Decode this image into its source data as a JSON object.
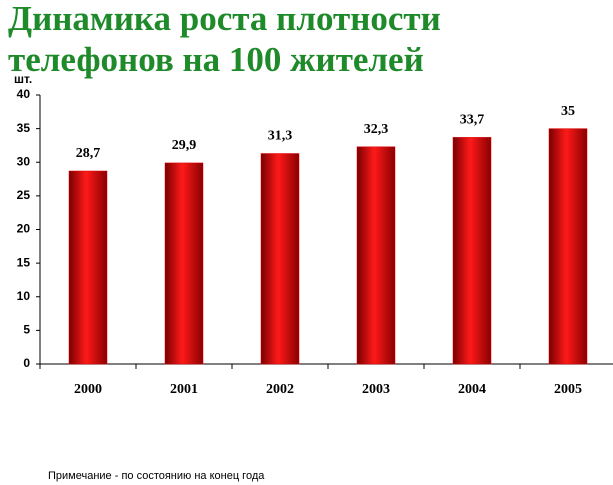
{
  "chart_data": {
    "type": "bar",
    "title": [
      "Динамика роста плотности",
      "телефонов на 100 жителей"
    ],
    "y_label": "шт.",
    "categories": [
      "2000",
      "2001",
      "2002",
      "2003",
      "2004",
      "2005"
    ],
    "values": [
      28.7,
      29.9,
      31.3,
      32.3,
      33.7,
      35
    ],
    "value_labels": [
      "28,7",
      "29,9",
      "31,3",
      "32,3",
      "33,7",
      "35"
    ],
    "color": "#e00000",
    "ylim": [
      0,
      40
    ],
    "yticks": [
      0,
      5,
      10,
      15,
      20,
      25,
      30,
      35,
      40
    ],
    "note": "Примечание - по состоянию на конец года"
  }
}
